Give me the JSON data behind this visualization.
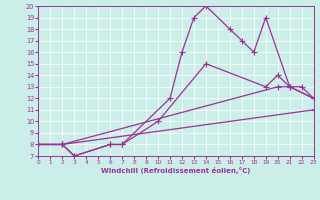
{
  "xlabel": "Windchill (Refroidissement éolien,°C)",
  "bg_color": "#cceee8",
  "line_color": "#993399",
  "xlim": [
    0,
    23
  ],
  "ylim": [
    7,
    20
  ],
  "xticks": [
    0,
    1,
    2,
    3,
    4,
    5,
    6,
    7,
    8,
    9,
    10,
    11,
    12,
    13,
    14,
    15,
    16,
    17,
    18,
    19,
    20,
    21,
    22,
    23
  ],
  "yticks": [
    7,
    8,
    9,
    10,
    11,
    12,
    13,
    14,
    15,
    16,
    17,
    18,
    19,
    20
  ],
  "line1_x": [
    0,
    2,
    23
  ],
  "line1_y": [
    8,
    8,
    11
  ],
  "line2_x": [
    0,
    2,
    20,
    21,
    23
  ],
  "line2_y": [
    8,
    8,
    13,
    13,
    12
  ],
  "line3_x": [
    0,
    2,
    3,
    6,
    7,
    10,
    14,
    19,
    20,
    21,
    22,
    23
  ],
  "line3_y": [
    8,
    8,
    7,
    8,
    8,
    10,
    15,
    13,
    14,
    13,
    13,
    12
  ],
  "line4_x": [
    0,
    2,
    3,
    6,
    7,
    11,
    12,
    13,
    14,
    16,
    17,
    18,
    19,
    21,
    23
  ],
  "line4_y": [
    8,
    8,
    7,
    8,
    8,
    12,
    16,
    19,
    20,
    18,
    17,
    16,
    19,
    13,
    12
  ]
}
